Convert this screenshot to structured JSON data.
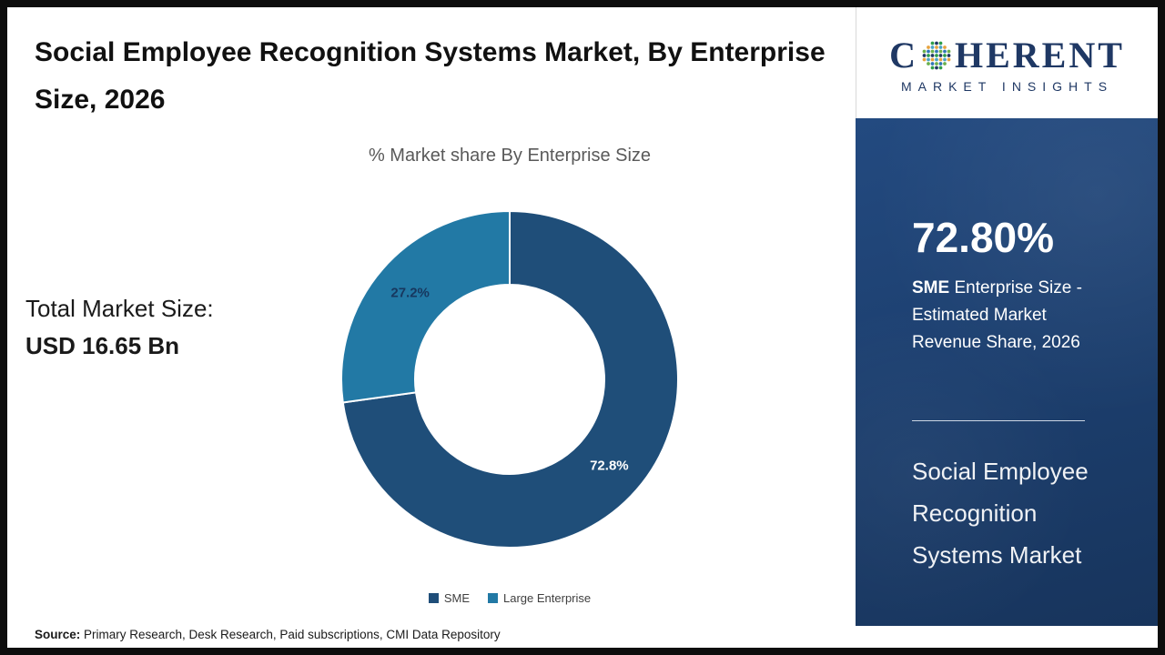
{
  "page": {
    "title": "Social Employee Recognition Systems Market, By Enterprise Size, 2026",
    "source_label": "Source:",
    "source_text": " Primary Research, Desk Research, Paid subscriptions, CMI Data Repository"
  },
  "chart_data": {
    "type": "pie",
    "donut": true,
    "title": "% Market share By Enterprise Size",
    "categories": [
      "SME",
      "Large Enterprise"
    ],
    "values": [
      72.8,
      27.2
    ],
    "labels": [
      "72.8%",
      "27.2%"
    ],
    "colors": [
      "#1f4e79",
      "#2279a5"
    ],
    "label_colors": [
      "#ffffff",
      "#17375e"
    ],
    "legend_position": "bottom",
    "start_angle_deg": 0
  },
  "left_panel": {
    "total_label": "Total Market Size:",
    "total_value": "USD 16.65 Bn"
  },
  "sidebar": {
    "highlight_value": "72.80%",
    "highlight_desc_bold": "SME",
    "highlight_desc": " Enterprise Size - Estimated Market Revenue Share, 2026",
    "market_name": "Social Employee Recognition Systems Market",
    "bg_color": "#1d4070"
  },
  "logo": {
    "brand_part1": "C",
    "brand_part2": "HERENT",
    "brand_line2": "MARKET INSIGHTS",
    "brand_color": "#1f3864"
  }
}
